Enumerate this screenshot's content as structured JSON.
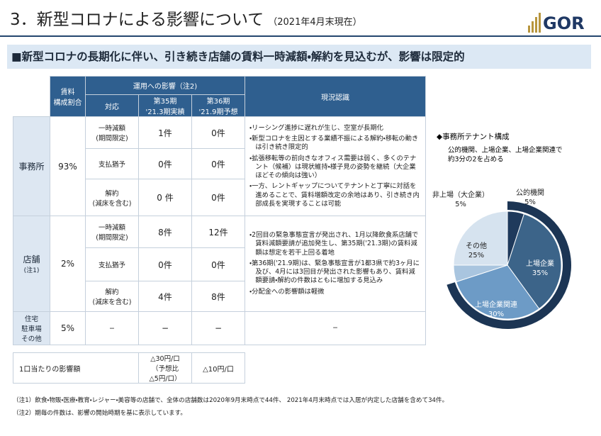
{
  "header": {
    "title": "3．新型コロナによる影響について",
    "note": "（2021年4月末現在）",
    "logo": "GOR"
  },
  "banner": "■新型コロナの長期化に伴い、引き続き店舗の賃料一時減額・解約を見込むが、影響は限定的",
  "table": {
    "head": {
      "share": [
        "賃料",
        "構成割合"
      ],
      "impact": "運用への影響（注2)",
      "action": "対応",
      "p35": [
        "第35期",
        "'21.3期実績"
      ],
      "p36": [
        "第36期",
        "'21.9期予想"
      ],
      "status": "現況認識"
    },
    "groups": [
      {
        "name": [
          "事務所"
        ],
        "share": "93%",
        "rows": [
          {
            "action": [
              "一時減額",
              "(期間限定)"
            ],
            "p35": "1件",
            "p36": "0件"
          },
          {
            "action": [
              "支払猶予"
            ],
            "p35": "0件",
            "p36": "0件"
          },
          {
            "action": [
              "解約",
              "(減床を含む)"
            ],
            "p35": "0 件",
            "p36": "0件"
          }
        ],
        "status": [
          "・リーシング進捗に遅れが生じ、空室が長期化",
          "・新型コロナを主因とする業績不振による解約・移転の動きは引き続き限定的",
          "・拡張移転等の前向きなオフィス需要は弱く、多くのテナント（候補）は現状維持・様子見の姿勢を継続（大企業ほどその傾向は強い）",
          "・一方、レントギャップについてテナントと丁寧に対話を進めることで、賃料増額改定の余地はあり、引き続き内部成長を実現することは可能"
        ]
      },
      {
        "name": [
          "店舗",
          "(注1)"
        ],
        "share": "2%",
        "rows": [
          {
            "action": [
              "一時減額",
              "(期間限定)"
            ],
            "p35": "8件",
            "p36": "12件"
          },
          {
            "action": [
              "支払猶予"
            ],
            "p35": "0件",
            "p36": "0件"
          },
          {
            "action": [
              "解約",
              "(減床を含む)"
            ],
            "p35": "4件",
            "p36": "8件"
          }
        ],
        "status": [
          "・2回目の緊急事態宣言が発出され、1月以降飲食系店舗で賃料減額要請が追加発生し、第35期('21.3期)の賃料減額は想定を若干上回る着地",
          "・第36期('21.9期)は、緊急事態宣言が1都3県で約3ヶ月に及び、4月には3回目が発出された影響もあり、賃料減額要請・解約の件数はともに増加する見込み",
          "・分配金への影響額は軽微"
        ]
      },
      {
        "name": [
          "住宅",
          "駐車場",
          "その他"
        ],
        "share": "5%",
        "rows": [
          {
            "action": [
              "−"
            ],
            "p35": "−",
            "p36": "−"
          }
        ],
        "status": [
          "−"
        ]
      }
    ]
  },
  "impact_table": {
    "label": "1口当たりの影響額",
    "p35": [
      "△30円/口",
      "（予想比",
      "△5円/口）"
    ],
    "p36": "△10円/口"
  },
  "footnotes": [
    "（注1）飲食・物販・医療・教育・レジャー・美容等の店舗で、全体の店舗数は2020年9月末時点で44件、 2021年4月末時点では入居が内定した店舗を含めて34件。",
    "（注2）期毎の件数は、影響の開始時期を基に表示しています。"
  ],
  "chart_data": {
    "type": "pie",
    "title": "◆事務所テナント構成",
    "subtitle": [
      "公的機関、上場企業、上場企業関連で",
      "約3分の2を占める"
    ],
    "categories": [
      "公的機関",
      "上場企業",
      "上場企業関連",
      "非上場（大企業）",
      "その他"
    ],
    "values": [
      5,
      35,
      30,
      5,
      25
    ],
    "value_labels": [
      "5%",
      "35%",
      "30%",
      "5%",
      "25%"
    ],
    "colors": [
      "#1f3a5c",
      "#3c6489",
      "#6d9bc6",
      "#a9c5df",
      "#d6e3ef"
    ],
    "highlight_color": "#1c3554"
  }
}
